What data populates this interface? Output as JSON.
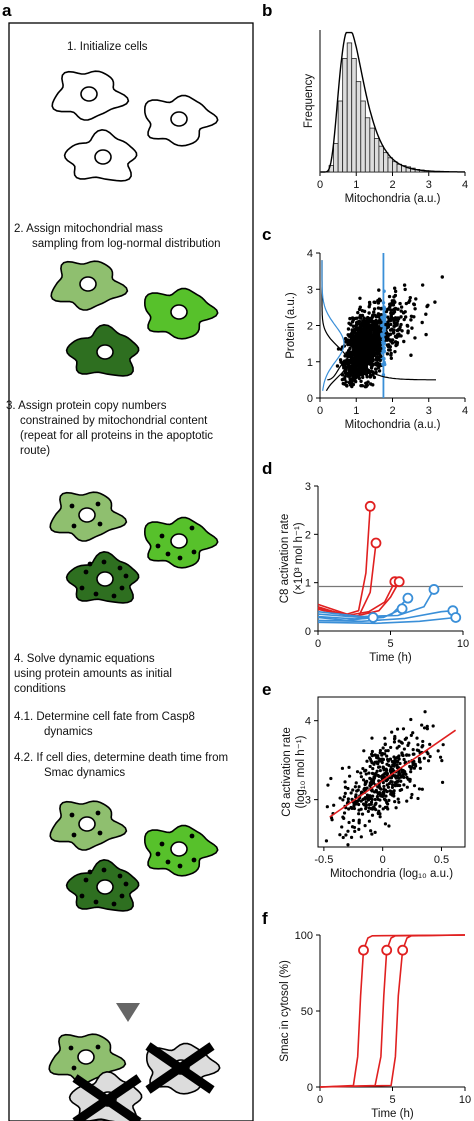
{
  "panel_labels": {
    "a": "a",
    "b": "b",
    "c": "c",
    "d": "d",
    "e": "e",
    "f": "f"
  },
  "steps": {
    "s1": "1. Initialize cells",
    "s2_l1": "2. Assign mitochondrial mass",
    "s2_l2": "sampling from log-normal distribution",
    "s3_l1": "3. Assign protein copy numbers",
    "s3_l2": "constrained by mitochondrial content",
    "s3_l3": "(repeat for all proteins in the apoptotic",
    "s3_l4": "route)",
    "s4_l1": "4. Solve dynamic equations",
    "s4_l2": "using protein amounts as initial",
    "s4_l3": "conditions",
    "s41_l1": "4.1. Determine cell fate from Casp8",
    "s41_l2": "dynamics",
    "s42_l1": "4.2. If cell dies, determine death time from",
    "s42_l2": "Smac dynamics"
  },
  "colors": {
    "light_green": "#8fbf6f",
    "bright_green": "#57c12b",
    "dark_green": "#2e6f20",
    "dead_gray": "#dcdcdc",
    "blue": "#3a8fd8",
    "red": "#e02020",
    "arrow_gray": "#666666"
  },
  "icons": {
    "arrow": "down-triangle-arrow",
    "dead_mark": "cross-mark"
  },
  "chart_data": [
    {
      "panel": "b",
      "type": "bar",
      "xlabel": "Mitochondria (a.u.)",
      "ylabel": "Frequency",
      "xlim": [
        0,
        4
      ],
      "xticks": [
        "0",
        "1",
        "2",
        "3",
        "4"
      ],
      "bin_width": 0.125,
      "bin_starts": [
        0.25,
        0.375,
        0.5,
        0.625,
        0.75,
        0.875,
        1.0,
        1.125,
        1.25,
        1.375,
        1.5,
        1.625,
        1.75,
        1.875,
        2.0,
        2.125,
        2.25,
        2.375,
        2.5,
        2.625,
        2.75,
        2.875,
        3.0
      ],
      "values": [
        0.05,
        0.22,
        0.55,
        0.88,
        1.0,
        0.88,
        0.7,
        0.55,
        0.42,
        0.34,
        0.26,
        0.2,
        0.15,
        0.11,
        0.08,
        0.06,
        0.05,
        0.04,
        0.03,
        0.02,
        0.015,
        0.01,
        0.008
      ],
      "fit": "log-normal"
    },
    {
      "panel": "c",
      "type": "scatter",
      "xlabel": "Mitochondria (a.u.)",
      "ylabel": "Protein (a.u.)",
      "xlim": [
        0,
        4
      ],
      "ylim": [
        0,
        4
      ],
      "xticks": [
        "0",
        "1",
        "2",
        "3",
        "4"
      ],
      "yticks": [
        "0",
        "1",
        "2",
        "3",
        "4"
      ],
      "selected_x": 1.75,
      "point_count": 1400
    },
    {
      "panel": "d",
      "type": "line",
      "xlabel": "Time (h)",
      "ylabel": "C8 activation rate",
      "ylabel_unit": "(×10³ mol h⁻¹)",
      "xlim": [
        0,
        10
      ],
      "ylim": [
        0,
        3
      ],
      "xticks": [
        "0",
        "5",
        "10"
      ],
      "yticks": [
        "0",
        "1",
        "2",
        "3"
      ],
      "threshold": 0.92,
      "series": [
        {
          "color": "red",
          "x": [
            0,
            1,
            2,
            2.8,
            3.3,
            3.6
          ],
          "y": [
            0.55,
            0.45,
            0.35,
            0.42,
            1.2,
            2.58
          ]
        },
        {
          "color": "red",
          "x": [
            0,
            1.5,
            2.8,
            3.6,
            4.0
          ],
          "y": [
            0.5,
            0.36,
            0.3,
            0.8,
            1.82
          ]
        },
        {
          "color": "red",
          "x": [
            0,
            2,
            3.5,
            4.6,
            5.3
          ],
          "y": [
            0.45,
            0.32,
            0.4,
            0.6,
            1.02
          ]
        },
        {
          "color": "red",
          "x": [
            0,
            2.5,
            4.2,
            5.0,
            5.6
          ],
          "y": [
            0.48,
            0.3,
            0.42,
            0.7,
            1.02
          ]
        },
        {
          "color": "blue",
          "x": [
            0,
            3,
            5.5,
            7.3,
            8.0
          ],
          "y": [
            0.4,
            0.3,
            0.32,
            0.5,
            0.86
          ]
        },
        {
          "color": "blue",
          "x": [
            0,
            3,
            5.0,
            6.2
          ],
          "y": [
            0.35,
            0.28,
            0.32,
            0.68
          ]
        },
        {
          "color": "blue",
          "x": [
            0,
            2.5,
            4.5,
            5.8
          ],
          "y": [
            0.3,
            0.25,
            0.28,
            0.46
          ]
        },
        {
          "color": "blue",
          "x": [
            0,
            3,
            6,
            8.5,
            9.3
          ],
          "y": [
            0.22,
            0.2,
            0.26,
            0.4,
            0.42
          ]
        },
        {
          "color": "blue",
          "x": [
            0,
            4,
            7,
            9.5
          ],
          "y": [
            0.18,
            0.16,
            0.2,
            0.28
          ]
        },
        {
          "color": "blue",
          "x": [
            0,
            2,
            3.8
          ],
          "y": [
            0.28,
            0.22,
            0.28
          ]
        }
      ]
    },
    {
      "panel": "e",
      "type": "scatter",
      "xlabel": "Mitochondria (log₁₀ a.u.)",
      "ylabel": "C8 activation rate",
      "ylabel_unit": "(log₁₀ mol h⁻¹)",
      "xlim": [
        -0.55,
        0.7
      ],
      "ylim": [
        2.4,
        4.3
      ],
      "xticks": [
        "-0.5",
        "0",
        "0.5"
      ],
      "yticks": [
        "3",
        "4"
      ],
      "fit_line": {
        "x": [
          -0.45,
          0.62
        ],
        "y": [
          2.78,
          3.88
        ]
      },
      "point_count": 480
    },
    {
      "panel": "f",
      "type": "line",
      "xlabel": "Time (h)",
      "ylabel": "Smac in cytosol (%)",
      "xlim": [
        0,
        10
      ],
      "ylim": [
        0,
        100
      ],
      "xticks": [
        "0",
        "5",
        "10"
      ],
      "yticks": [
        "0",
        "50",
        "100"
      ],
      "series": [
        {
          "color": "red",
          "x": [
            0,
            2.3,
            2.6,
            2.8,
            3.0,
            3.3,
            3.6,
            10
          ],
          "y": [
            0,
            1,
            20,
            60,
            90,
            98,
            99.5,
            100
          ]
        },
        {
          "color": "red",
          "x": [
            0,
            3.8,
            4.2,
            4.4,
            4.6,
            4.9,
            5.2,
            10
          ],
          "y": [
            0,
            1,
            20,
            60,
            90,
            98,
            99.5,
            100
          ]
        },
        {
          "color": "red",
          "x": [
            0,
            4.9,
            5.2,
            5.4,
            5.7,
            6.0,
            6.3,
            10
          ],
          "y": [
            0,
            1,
            20,
            60,
            90,
            98,
            99.5,
            100
          ]
        }
      ],
      "markers": [
        {
          "x": 3.0,
          "y": 90
        },
        {
          "x": 4.6,
          "y": 90
        },
        {
          "x": 5.7,
          "y": 90
        }
      ]
    }
  ]
}
